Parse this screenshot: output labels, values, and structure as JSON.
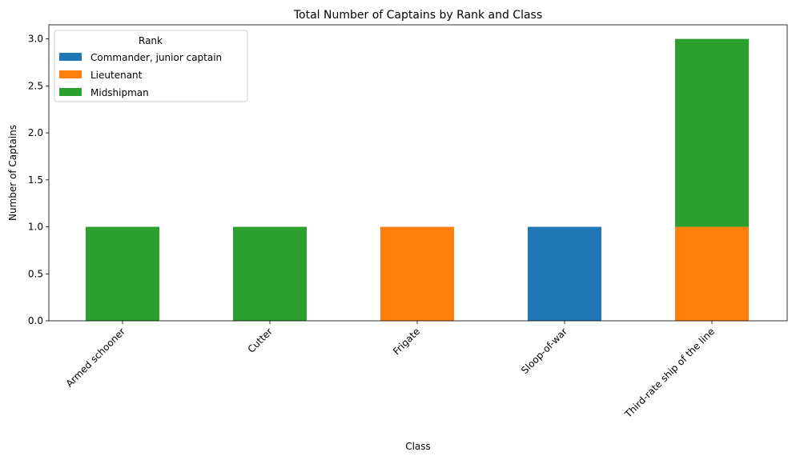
{
  "chart_data": {
    "type": "bar",
    "stacked": true,
    "title": "Total Number of Captains by Rank and Class",
    "xlabel": "Class",
    "ylabel": "Number of Captains",
    "categories": [
      "Armed schooner",
      "Cutter",
      "Frigate",
      "Sloop-of-war",
      "Third-rate ship of the line"
    ],
    "series": [
      {
        "name": "Commander, junior captain",
        "color": "#1f77b4",
        "values": [
          0,
          0,
          0,
          1,
          0
        ]
      },
      {
        "name": "Lieutenant",
        "color": "#ff7f0e",
        "values": [
          0,
          0,
          1,
          0,
          1
        ]
      },
      {
        "name": "Midshipman",
        "color": "#2ca02c",
        "values": [
          1,
          1,
          0,
          0,
          2
        ]
      }
    ],
    "ylim": [
      0,
      3.15
    ],
    "yticks": [
      "0.0",
      "0.5",
      "1.0",
      "1.5",
      "2.0",
      "2.5",
      "3.0"
    ],
    "legend": {
      "title": "Rank",
      "placement": "top-left"
    },
    "grid": false
  }
}
